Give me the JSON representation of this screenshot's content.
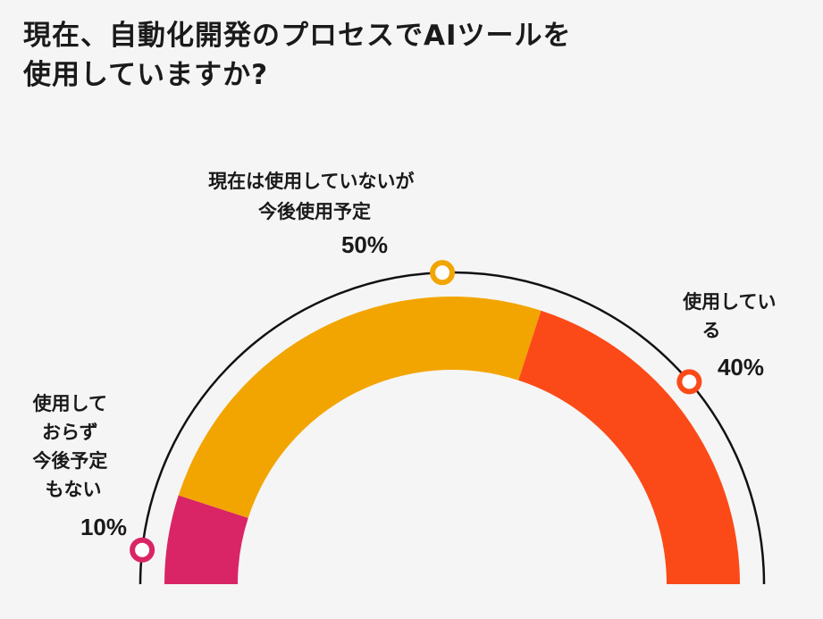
{
  "title_lines": [
    "現在、自動化開発のプロセスでAIツールを",
    "使用していますか?"
  ],
  "chart_data": {
    "type": "pie",
    "style": "semi-donut",
    "categories": [
      {
        "label_lines": [
          "使用して",
          "おらず",
          "今後予定",
          "もない"
        ],
        "value": 10,
        "value_label": "10%",
        "color": "#d92566"
      },
      {
        "label_lines": [
          "現在は使用していないが",
          "今後使用予定"
        ],
        "value": 50,
        "value_label": "50%",
        "color": "#f2a500"
      },
      {
        "label_lines": [
          "使用してい",
          "る"
        ],
        "value": 40,
        "value_label": "40%",
        "color": "#fb4a18"
      }
    ],
    "total": 100,
    "outer_arc_color": "#111111",
    "marker_fill": "#ffffff"
  }
}
